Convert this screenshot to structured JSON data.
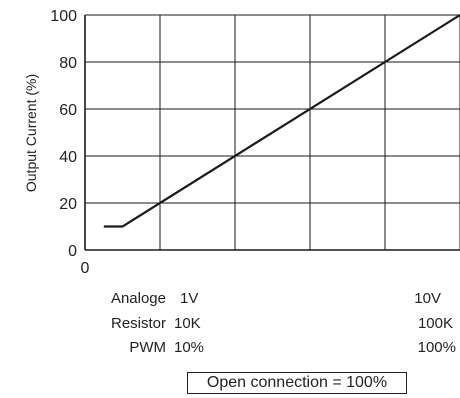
{
  "chart_data": {
    "type": "line",
    "ylabel": "Output Current (%)",
    "xlabel": "",
    "ylim": [
      0,
      100
    ],
    "xlim": [
      0,
      100
    ],
    "yticks": [
      "0",
      "20",
      "40",
      "60",
      "80",
      "100"
    ],
    "x_origin_label": "0",
    "grid": true,
    "series": [
      {
        "x": [
          5,
          10,
          100
        ],
        "y": [
          10,
          10,
          100
        ]
      }
    ],
    "scales": [
      {
        "name": "Analoge",
        "min_label": "1V",
        "max_label": "10V"
      },
      {
        "name": "Resistor",
        "min_label": "10K",
        "max_label": "100K"
      },
      {
        "name": "PWM",
        "min_label": "10%",
        "max_label": "100%"
      }
    ],
    "note": "Open connection = 100%"
  }
}
